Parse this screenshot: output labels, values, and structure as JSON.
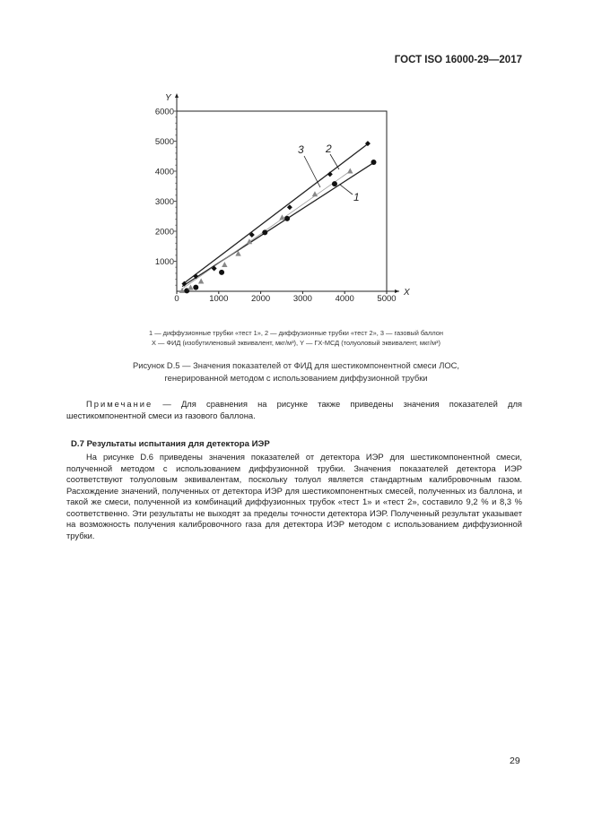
{
  "header": {
    "doc_id": "ГОСТ ISO 16000-29—2017"
  },
  "chart_data": {
    "type": "scatter",
    "xlabel": "X",
    "ylabel": "Y",
    "xlim": [
      0,
      5000
    ],
    "ylim": [
      0,
      6000
    ],
    "xticks": [
      0,
      1000,
      2000,
      3000,
      4000,
      5000
    ],
    "yticks": [
      1000,
      2000,
      3000,
      4000,
      5000,
      6000
    ],
    "grid": false,
    "series": [
      {
        "name": "1",
        "marker": "circle",
        "color": "#111111",
        "points": [
          [
            240,
            20
          ],
          [
            455,
            130
          ],
          [
            1070,
            630
          ],
          [
            2100,
            1960
          ],
          [
            2630,
            2420
          ],
          [
            3760,
            3580
          ],
          [
            4690,
            4300
          ]
        ],
        "fit": [
          [
            130,
            160
          ],
          [
            4710,
            4300
          ]
        ]
      },
      {
        "name": "2",
        "marker": "diamond",
        "color": "#111111",
        "points": [
          [
            180,
            250
          ],
          [
            455,
            500
          ],
          [
            890,
            760
          ],
          [
            1790,
            1880
          ],
          [
            2690,
            2800
          ],
          [
            3650,
            3900
          ],
          [
            4550,
            4920
          ]
        ],
        "fit": [
          [
            165,
            260
          ],
          [
            4570,
            4930
          ]
        ]
      },
      {
        "name": "3",
        "marker": "triangle",
        "color": "#888888",
        "points": [
          [
            130,
            20
          ],
          [
            330,
            120
          ],
          [
            580,
            330
          ],
          [
            1140,
            880
          ],
          [
            1465,
            1250
          ],
          [
            1730,
            1650
          ],
          [
            2510,
            2450
          ],
          [
            3290,
            3230
          ],
          [
            4130,
            4000
          ]
        ],
        "fit": [
          [
            130,
            80
          ],
          [
            4130,
            4000
          ]
        ]
      }
    ]
  },
  "figure": {
    "legend_line1": "1 — диффузионные трубки «тест 1», 2 — диффузионные трубки «тест 2», 3 — газовый баллон",
    "legend_line2": "X — ФИД (изобутиленовый эквивалент, мкг/м³), Y — ГХ-МСД (толуоловый эквивалент, мкг/м³)",
    "title_line1": "Рисунок D.5 — Значения показателей от ФИД для шестикомпонентной смеси ЛОС,",
    "title_line2": "генерированной методом с использованием диффузионной трубки"
  },
  "note": {
    "label": "Примечание",
    "text": " — Для сравнения на рисунке также приведены значения показателей для шестикомпонентной смеси из газового баллона."
  },
  "section": {
    "heading": "D.7 Результаты испытания для детектора ИЭР",
    "paragraph": "На рисунке D.6 приведены значения показателей от детектора ИЭР для шестикомпонентной смеси, полученной методом с использованием диффузионной трубки. Значения показателей детектора ИЭР соответствуют толуоловым эквивалентам, поскольку толуол является стандартным калибровочным газом. Расхождение значений, полученных от детектора ИЭР для шестикомпонентных смесей, полученных из баллона, и такой же смеси, полученной из комбинаций диффузионных трубок «тест 1» и «тест 2», составило 9,2 % и 8,3 % соответственно. Эти результаты не выходят за пределы точности детектора ИЭР. Полученный результат указывает на возможность получения калибровочного газа для детектора ИЭР методом с использованием диффузионной трубки."
  },
  "page_number": "29"
}
